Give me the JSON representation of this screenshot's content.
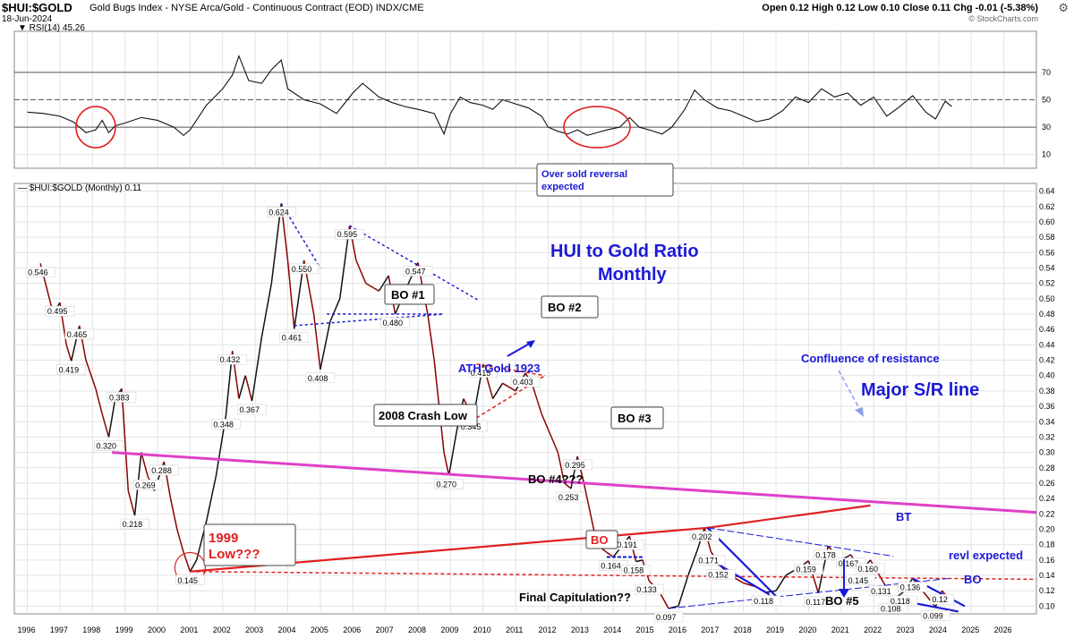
{
  "header": {
    "symbol": "$HUI:$GOLD",
    "description": "Gold Bugs Index - NYSE Arca/Gold - Continuous Contract (EOD) INDX/CME",
    "date": "18-Jun-2024",
    "quote": "Open 0.12  High 0.12  Low 0.10  Close 0.11  Chg -0.01 (-5.38%)",
    "credit": "© StockCharts.com",
    "settings_icon": "gear-icon"
  },
  "chart_data": {
    "type": "line",
    "title": "HUI to Gold Ratio Monthly",
    "rsi_panel": {
      "label": "RSI(14) 45.26",
      "ylim": [
        0,
        100
      ],
      "ticks": [
        "70",
        "50",
        "30",
        "10"
      ],
      "tick_values": [
        70,
        50,
        30,
        10
      ],
      "series": [
        [
          1996.0,
          41
        ],
        [
          1996.5,
          40
        ],
        [
          1997.0,
          38
        ],
        [
          1997.4,
          34
        ],
        [
          1997.8,
          26
        ],
        [
          1998.1,
          28
        ],
        [
          1998.3,
          35
        ],
        [
          1998.5,
          26
        ],
        [
          1998.7,
          31
        ],
        [
          1999.0,
          33
        ],
        [
          1999.5,
          37
        ],
        [
          2000.0,
          35
        ],
        [
          2000.5,
          30
        ],
        [
          2000.8,
          24
        ],
        [
          2001.0,
          28
        ],
        [
          2001.5,
          46
        ],
        [
          2002.0,
          58
        ],
        [
          2002.3,
          68
        ],
        [
          2002.5,
          82
        ],
        [
          2002.8,
          64
        ],
        [
          2003.2,
          62
        ],
        [
          2003.5,
          72
        ],
        [
          2003.8,
          79
        ],
        [
          2004.0,
          58
        ],
        [
          2004.5,
          50
        ],
        [
          2005.0,
          47
        ],
        [
          2005.5,
          40
        ],
        [
          2006.0,
          55
        ],
        [
          2006.3,
          62
        ],
        [
          2006.8,
          52
        ],
        [
          2007.2,
          48
        ],
        [
          2007.6,
          45
        ],
        [
          2008.0,
          43
        ],
        [
          2008.5,
          40
        ],
        [
          2008.8,
          25
        ],
        [
          2009.0,
          40
        ],
        [
          2009.3,
          52
        ],
        [
          2009.6,
          48
        ],
        [
          2010.0,
          46
        ],
        [
          2010.3,
          43
        ],
        [
          2010.6,
          50
        ],
        [
          2011.0,
          47
        ],
        [
          2011.4,
          44
        ],
        [
          2011.8,
          38
        ],
        [
          2012.0,
          30
        ],
        [
          2012.3,
          27
        ],
        [
          2012.6,
          25
        ],
        [
          2012.9,
          28
        ],
        [
          2013.2,
          24
        ],
        [
          2013.5,
          26
        ],
        [
          2013.8,
          28
        ],
        [
          2014.2,
          30
        ],
        [
          2014.5,
          37
        ],
        [
          2014.8,
          30
        ],
        [
          2015.1,
          28
        ],
        [
          2015.5,
          25
        ],
        [
          2015.8,
          30
        ],
        [
          2016.2,
          43
        ],
        [
          2016.5,
          57
        ],
        [
          2016.8,
          50
        ],
        [
          2017.2,
          44
        ],
        [
          2017.6,
          42
        ],
        [
          2018.0,
          38
        ],
        [
          2018.4,
          34
        ],
        [
          2018.8,
          36
        ],
        [
          2019.2,
          42
        ],
        [
          2019.6,
          52
        ],
        [
          2020.0,
          48
        ],
        [
          2020.4,
          58
        ],
        [
          2020.8,
          52
        ],
        [
          2021.2,
          55
        ],
        [
          2021.6,
          46
        ],
        [
          2022.0,
          52
        ],
        [
          2022.4,
          38
        ],
        [
          2022.8,
          45
        ],
        [
          2023.2,
          53
        ],
        [
          2023.6,
          41
        ],
        [
          2023.9,
          36
        ],
        [
          2024.2,
          49
        ],
        [
          2024.4,
          45
        ]
      ]
    },
    "price_panel": {
      "label": "$HUI:$GOLD (Monthly) 0.11",
      "ylim": [
        0.09,
        0.65
      ],
      "y_ticks": [
        "0.64",
        "0.62",
        "0.60",
        "0.58",
        "0.56",
        "0.54",
        "0.52",
        "0.50",
        "0.48",
        "0.46",
        "0.44",
        "0.42",
        "0.40",
        "0.38",
        "0.36",
        "0.34",
        "0.32",
        "0.30",
        "0.28",
        "0.26",
        "0.24",
        "0.22",
        "0.20",
        "0.18",
        "0.16",
        "0.14",
        "0.12",
        "0.10"
      ],
      "y_tick_values": [
        0.64,
        0.62,
        0.6,
        0.58,
        0.56,
        0.54,
        0.52,
        0.5,
        0.48,
        0.46,
        0.44,
        0.42,
        0.4,
        0.38,
        0.36,
        0.34,
        0.32,
        0.3,
        0.28,
        0.26,
        0.24,
        0.22,
        0.2,
        0.18,
        0.16,
        0.14,
        0.12,
        0.1
      ],
      "x_ticks": [
        "1996",
        "1997",
        "1998",
        "1999",
        "2000",
        "2001",
        "2002",
        "2003",
        "2004",
        "2005",
        "2006",
        "2007",
        "2008",
        "2009",
        "2010",
        "2011",
        "2012",
        "2013",
        "2014",
        "2015",
        "2016",
        "2017",
        "2018",
        "2019",
        "2020",
        "2021",
        "2022",
        "2023",
        "2024",
        "2025",
        "2026"
      ],
      "x_tick_values": [
        1996,
        1997,
        1998,
        1999,
        2000,
        2001,
        2002,
        2003,
        2004,
        2005,
        2006,
        2007,
        2008,
        2009,
        2010,
        2011,
        2012,
        2013,
        2014,
        2015,
        2016,
        2017,
        2018,
        2019,
        2020,
        2021,
        2022,
        2023,
        2024,
        2025,
        2026
      ],
      "xlim": [
        1995.6,
        2027.0
      ],
      "series": [
        [
          1996.4,
          0.546
        ],
        [
          1996.8,
          0.48
        ],
        [
          1997.0,
          0.495
        ],
        [
          1997.2,
          0.44
        ],
        [
          1997.35,
          0.419
        ],
        [
          1997.6,
          0.465
        ],
        [
          1997.8,
          0.42
        ],
        [
          1998.1,
          0.383
        ],
        [
          1998.3,
          0.35
        ],
        [
          1998.5,
          0.32
        ],
        [
          1998.7,
          0.37
        ],
        [
          1998.9,
          0.383
        ],
        [
          1999.1,
          0.25
        ],
        [
          1999.3,
          0.218
        ],
        [
          1999.5,
          0.3
        ],
        [
          1999.7,
          0.269
        ],
        [
          1999.9,
          0.25
        ],
        [
          2000.2,
          0.288
        ],
        [
          2000.4,
          0.24
        ],
        [
          2000.6,
          0.2
        ],
        [
          2000.8,
          0.17
        ],
        [
          2001.0,
          0.145
        ],
        [
          2001.2,
          0.16
        ],
        [
          2001.5,
          0.21
        ],
        [
          2001.8,
          0.27
        ],
        [
          2002.1,
          0.348
        ],
        [
          2002.3,
          0.432
        ],
        [
          2002.5,
          0.37
        ],
        [
          2002.7,
          0.4
        ],
        [
          2002.9,
          0.367
        ],
        [
          2003.2,
          0.45
        ],
        [
          2003.5,
          0.52
        ],
        [
          2003.8,
          0.624
        ],
        [
          2004.0,
          0.55
        ],
        [
          2004.2,
          0.461
        ],
        [
          2004.5,
          0.55
        ],
        [
          2004.8,
          0.48
        ],
        [
          2005.0,
          0.408
        ],
        [
          2005.3,
          0.47
        ],
        [
          2005.6,
          0.5
        ],
        [
          2005.9,
          0.595
        ],
        [
          2006.1,
          0.55
        ],
        [
          2006.4,
          0.52
        ],
        [
          2006.8,
          0.51
        ],
        [
          2007.1,
          0.53
        ],
        [
          2007.3,
          0.48
        ],
        [
          2007.6,
          0.51
        ],
        [
          2008.0,
          0.547
        ],
        [
          2008.3,
          0.48
        ],
        [
          2008.5,
          0.42
        ],
        [
          2008.8,
          0.3
        ],
        [
          2008.95,
          0.27
        ],
        [
          2009.2,
          0.33
        ],
        [
          2009.4,
          0.37
        ],
        [
          2009.7,
          0.345
        ],
        [
          2010.0,
          0.415
        ],
        [
          2010.3,
          0.37
        ],
        [
          2010.6,
          0.39
        ],
        [
          2011.0,
          0.38
        ],
        [
          2011.3,
          0.403
        ],
        [
          2011.5,
          0.39
        ],
        [
          2011.8,
          0.35
        ],
        [
          2012.0,
          0.33
        ],
        [
          2012.3,
          0.3
        ],
        [
          2012.5,
          0.26
        ],
        [
          2012.7,
          0.253
        ],
        [
          2012.9,
          0.295
        ],
        [
          2013.1,
          0.26
        ],
        [
          2013.3,
          0.22
        ],
        [
          2013.5,
          0.18
        ],
        [
          2013.8,
          0.17
        ],
        [
          2014.0,
          0.164
        ],
        [
          2014.3,
          0.18
        ],
        [
          2014.5,
          0.191
        ],
        [
          2014.7,
          0.158
        ],
        [
          2014.9,
          0.16
        ],
        [
          2015.1,
          0.133
        ],
        [
          2015.4,
          0.12
        ],
        [
          2015.7,
          0.097
        ],
        [
          2016.0,
          0.1
        ],
        [
          2016.3,
          0.14
        ],
        [
          2016.6,
          0.175
        ],
        [
          2016.8,
          0.202
        ],
        [
          2017.0,
          0.171
        ],
        [
          2017.3,
          0.152
        ],
        [
          2017.6,
          0.14
        ],
        [
          2018.0,
          0.13
        ],
        [
          2018.4,
          0.125
        ],
        [
          2018.7,
          0.118
        ],
        [
          2019.0,
          0.12
        ],
        [
          2019.3,
          0.14
        ],
        [
          2019.7,
          0.15
        ],
        [
          2020.0,
          0.159
        ],
        [
          2020.3,
          0.117
        ],
        [
          2020.6,
          0.178
        ],
        [
          2021.0,
          0.16
        ],
        [
          2021.3,
          0.167
        ],
        [
          2021.6,
          0.145
        ],
        [
          2021.9,
          0.16
        ],
        [
          2022.3,
          0.131
        ],
        [
          2022.6,
          0.108
        ],
        [
          2022.9,
          0.118
        ],
        [
          2023.2,
          0.136
        ],
        [
          2023.5,
          0.12
        ],
        [
          2023.9,
          0.099
        ],
        [
          2024.1,
          0.12
        ],
        [
          2024.3,
          0.11
        ]
      ],
      "point_labels": [
        {
          "t": "0.546",
          "x": 1996.4,
          "y": 0.546
        },
        {
          "t": "0.495",
          "x": 1997.0,
          "y": 0.495
        },
        {
          "t": "0.465",
          "x": 1997.6,
          "y": 0.465
        },
        {
          "t": "0.419",
          "x": 1997.35,
          "y": 0.419
        },
        {
          "t": "0.383",
          "x": 1998.9,
          "y": 0.383
        },
        {
          "t": "0.320",
          "x": 1998.5,
          "y": 0.32
        },
        {
          "t": "0.269",
          "x": 1999.7,
          "y": 0.269
        },
        {
          "t": "0.288",
          "x": 2000.2,
          "y": 0.288
        },
        {
          "t": "0.218",
          "x": 1999.3,
          "y": 0.218
        },
        {
          "t": "0.145",
          "x": 2001.0,
          "y": 0.145
        },
        {
          "t": "0.432",
          "x": 2002.3,
          "y": 0.432
        },
        {
          "t": "0.348",
          "x": 2002.1,
          "y": 0.348
        },
        {
          "t": "0.367",
          "x": 2002.9,
          "y": 0.367
        },
        {
          "t": "0.624",
          "x": 2003.8,
          "y": 0.624
        },
        {
          "t": "0.550",
          "x": 2004.5,
          "y": 0.55
        },
        {
          "t": "0.461",
          "x": 2004.2,
          "y": 0.461
        },
        {
          "t": "0.408",
          "x": 2005.0,
          "y": 0.408
        },
        {
          "t": "0.595",
          "x": 2005.9,
          "y": 0.595
        },
        {
          "t": "0.547",
          "x": 2008.0,
          "y": 0.547
        },
        {
          "t": "0.480",
          "x": 2007.3,
          "y": 0.48
        },
        {
          "t": "0.270",
          "x": 2008.95,
          "y": 0.27
        },
        {
          "t": "0.415",
          "x": 2010.0,
          "y": 0.415
        },
        {
          "t": "0.345",
          "x": 2009.7,
          "y": 0.345
        },
        {
          "t": "0.403",
          "x": 2011.3,
          "y": 0.403
        },
        {
          "t": "0.295",
          "x": 2012.9,
          "y": 0.295
        },
        {
          "t": "0.253",
          "x": 2012.7,
          "y": 0.253
        },
        {
          "t": "0.191",
          "x": 2014.5,
          "y": 0.191
        },
        {
          "t": "0.164",
          "x": 2014.0,
          "y": 0.164
        },
        {
          "t": "0.158",
          "x": 2014.7,
          "y": 0.158
        },
        {
          "t": "0.133",
          "x": 2015.1,
          "y": 0.133
        },
        {
          "t": "0.097",
          "x": 2015.7,
          "y": 0.097
        },
        {
          "t": "0.202",
          "x": 2016.8,
          "y": 0.202
        },
        {
          "t": "0.171",
          "x": 2017.0,
          "y": 0.171
        },
        {
          "t": "0.152",
          "x": 2017.3,
          "y": 0.152
        },
        {
          "t": "0.118",
          "x": 2018.7,
          "y": 0.118
        },
        {
          "t": "0.159",
          "x": 2020.0,
          "y": 0.159
        },
        {
          "t": "0.117",
          "x": 2020.3,
          "y": 0.117
        },
        {
          "t": "0.178",
          "x": 2020.6,
          "y": 0.178
        },
        {
          "t": "0.167",
          "x": 2021.3,
          "y": 0.167
        },
        {
          "t": "0.145",
          "x": 2021.6,
          "y": 0.145
        },
        {
          "t": "0.160",
          "x": 2021.9,
          "y": 0.16
        },
        {
          "t": "0.131",
          "x": 2022.3,
          "y": 0.131
        },
        {
          "t": "0.108",
          "x": 2022.6,
          "y": 0.108
        },
        {
          "t": "0.118",
          "x": 2022.9,
          "y": 0.118
        },
        {
          "t": "0.136",
          "x": 2023.2,
          "y": 0.136
        },
        {
          "t": "0.099",
          "x": 2023.9,
          "y": 0.099
        },
        {
          "t": "0.12",
          "x": 2024.1,
          "y": 0.12
        }
      ]
    },
    "annotations": {
      "title_line1": "HUI to Gold Ratio",
      "title_line2": "Monthly",
      "oversold_line1": "Over sold reversal",
      "oversold_line2": "expected",
      "bo1": "BO #1",
      "bo2": "BO #2",
      "bo3": "BO #3",
      "bo4": "BO #4???",
      "bo5": "BO #5",
      "bo_red": "BO",
      "bo_blue": "BO",
      "bt": "BT",
      "crash": "2008 Crash Low",
      "ath": "ATH Gold 1923",
      "low1999_line1": "1999",
      "low1999_line2": "Low???",
      "confluence": "Confluence of resistance",
      "major_sr": "Major S/R line",
      "final_cap": "Final Capitulation??",
      "revl": "revl expected"
    },
    "colors": {
      "price_line": "#8b0000",
      "major_sr": "#e040c8",
      "red_line": "#e02020",
      "blue": "#1a1ad8",
      "rsi_line": "#111111"
    },
    "grid": true
  }
}
